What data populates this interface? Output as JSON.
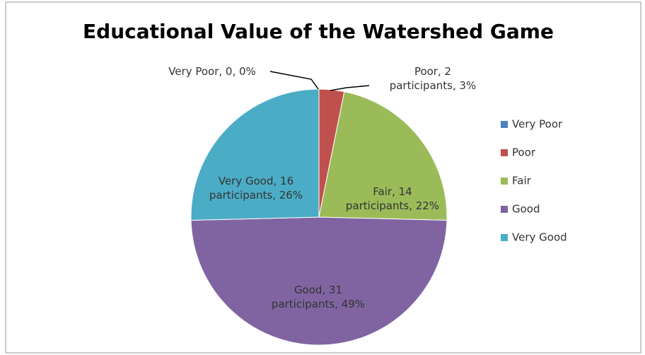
{
  "chart_data": {
    "type": "pie",
    "title": "Educational Value of the Watershed Game",
    "categories": [
      "Very Poor",
      "Poor",
      "Fair",
      "Good",
      "Very Good"
    ],
    "values": [
      0,
      2,
      14,
      31,
      16
    ],
    "value_labels": [
      "Very Poor, 0, 0%",
      "Poor, 2 participants, 3%",
      "Fair, 14 participants, 22%",
      "Good, 31 participants, 49%",
      "Very Good, 16 participants, 26%"
    ],
    "colors": [
      "#4f81bd",
      "#c0504d",
      "#9bbb59",
      "#8064a2",
      "#4bacc6"
    ],
    "legend": "right"
  }
}
